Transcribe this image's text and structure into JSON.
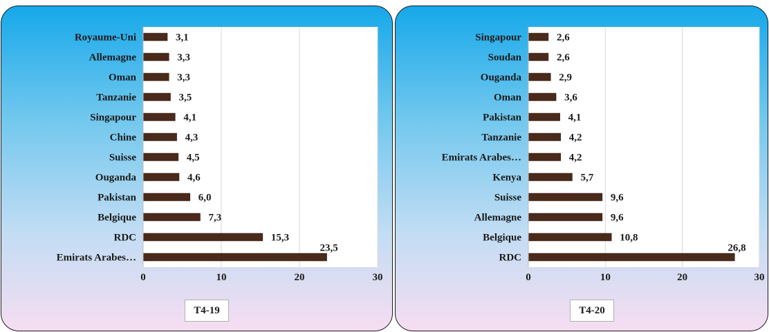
{
  "chart_data": [
    {
      "type": "bar",
      "orientation": "horizontal",
      "title": "T4-19",
      "categories": [
        "Royaume-Uni",
        "Allemagne",
        "Oman",
        "Tanzanie",
        "Singapour",
        "Chine",
        "Suisse",
        "Ouganda",
        "Pakistan",
        "Belgique",
        "RDC",
        "Emirats Arabes…"
      ],
      "values": [
        3.1,
        3.3,
        3.3,
        3.5,
        4.1,
        4.3,
        4.5,
        4.6,
        6.0,
        7.3,
        15.3,
        23.5
      ],
      "value_labels": [
        "3,1",
        "3,3",
        "3,3",
        "3,5",
        "4,1",
        "4,3",
        "4,5",
        "4,6",
        "6,0",
        "7,3",
        "15,3",
        "23,5"
      ],
      "xlim": [
        0,
        30
      ],
      "xticks": [
        "0",
        "10",
        "20",
        "30"
      ],
      "grid": true,
      "bar_color": "#4a2a1a"
    },
    {
      "type": "bar",
      "orientation": "horizontal",
      "title": "T4-20",
      "categories": [
        "Singapour",
        "Soudan",
        "Ouganda",
        "Oman",
        "Pakistan",
        "Tanzanie",
        "Emirats Arabes…",
        "Kenya",
        "Suisse",
        "Allemagne",
        "Belgique",
        "RDC"
      ],
      "values": [
        2.6,
        2.6,
        2.9,
        3.6,
        4.1,
        4.2,
        4.2,
        5.7,
        9.6,
        9.6,
        10.8,
        26.8
      ],
      "value_labels": [
        "2,6",
        "2,6",
        "2,9",
        "3,6",
        "4,1",
        "4,2",
        "4,2",
        "5,7",
        "9,6",
        "9,6",
        "10,8",
        "26,8"
      ],
      "xlim": [
        0,
        30
      ],
      "xticks": [
        "0",
        "10",
        "20",
        "30"
      ],
      "grid": true,
      "bar_color": "#4a2a1a"
    }
  ]
}
